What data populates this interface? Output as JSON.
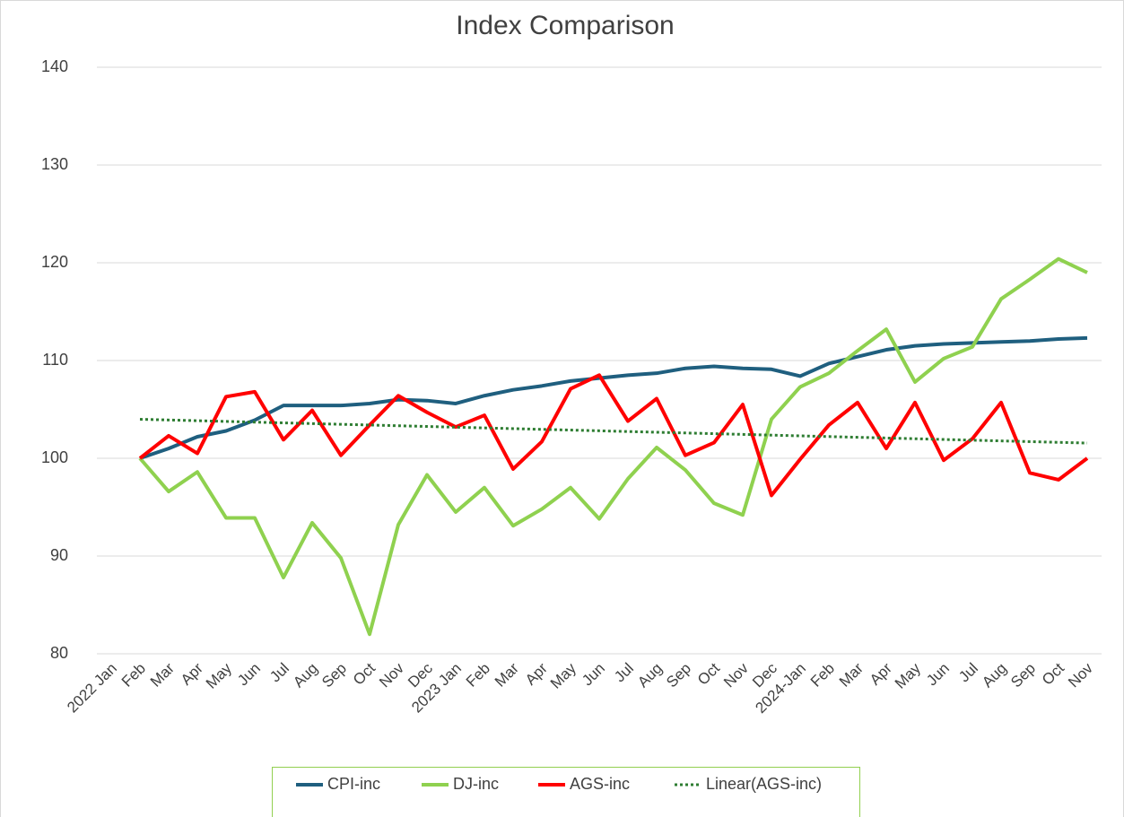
{
  "chart_data": {
    "type": "line",
    "title": "Index Comparison",
    "categories": [
      "2022 Jan",
      "Feb",
      "Mar",
      "Apr",
      "May",
      "Jun",
      "Jul",
      "Aug",
      "Sep",
      "Oct",
      "Nov",
      "Dec",
      "2023 Jan",
      "Feb",
      "Mar",
      "Apr",
      "May",
      "Jun",
      "Jul",
      "Aug",
      "Sep",
      "Oct",
      "Nov",
      "Dec",
      "2024-Jan",
      "Feb",
      "Mar",
      "Apr",
      "May",
      "Jun",
      "Jul",
      "Aug",
      "Sep",
      "Oct",
      "Nov"
    ],
    "series": [
      {
        "name": "CPI-inc",
        "color": "#1f5f7f",
        "values": [
          null,
          100,
          101,
          102.2,
          102.8,
          103.9,
          105.4,
          105.4,
          105.4,
          105.6,
          106.0,
          105.9,
          105.6,
          106.4,
          107.0,
          107.4,
          107.9,
          108.2,
          108.5,
          108.7,
          109.2,
          109.4,
          109.2,
          109.1,
          108.4,
          109.7,
          110.4,
          111.1,
          111.5,
          111.7,
          111.8,
          111.9,
          112.0,
          112.2,
          112.3
        ]
      },
      {
        "name": "DJ-inc",
        "color": "#8fd14f",
        "values": [
          null,
          100,
          96.6,
          98.6,
          93.9,
          93.9,
          87.8,
          93.4,
          89.8,
          82.0,
          93.2,
          98.3,
          94.5,
          97.0,
          93.1,
          94.8,
          97.0,
          93.8,
          97.9,
          101.1,
          98.8,
          95.4,
          94.2,
          104.0,
          107.3,
          108.7,
          111.0,
          113.2,
          107.8,
          110.2,
          111.4,
          116.3,
          118.3,
          120.4,
          119.0
        ]
      },
      {
        "name": "AGS-inc",
        "color": "#ff0000",
        "trendline": "linear",
        "trend_name": "Linear(AGS-inc)",
        "trend_color": "#2e7d32",
        "values": [
          null,
          100,
          102.3,
          100.5,
          106.3,
          106.8,
          101.9,
          104.9,
          100.3,
          103.4,
          106.4,
          104.7,
          103.2,
          104.4,
          98.9,
          101.7,
          107.1,
          108.5,
          103.8,
          106.1,
          100.3,
          101.6,
          105.5,
          96.2,
          99.9,
          103.4,
          105.7,
          101.0,
          105.7,
          99.8,
          102.0,
          105.7,
          98.5,
          97.8,
          100.0
        ]
      }
    ],
    "ylim": [
      80,
      140
    ],
    "yticks": [
      80,
      90,
      100,
      110,
      120,
      130,
      140
    ],
    "grid": true,
    "legend": "bottom"
  }
}
